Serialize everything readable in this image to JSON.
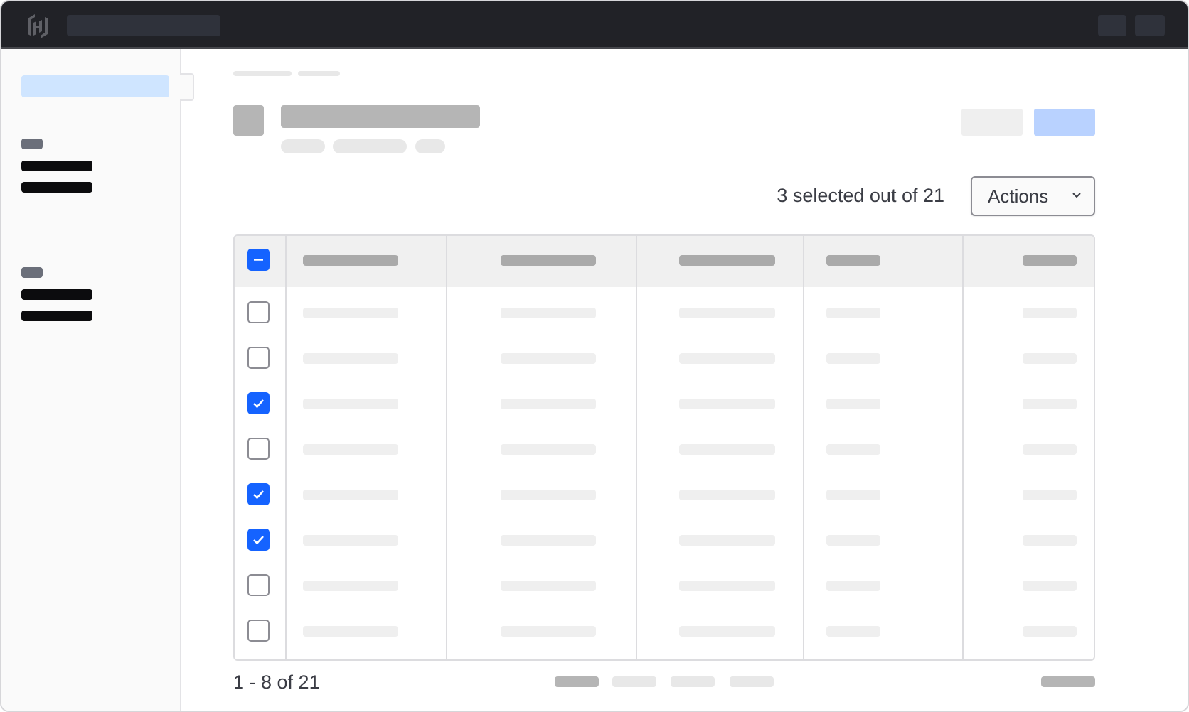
{
  "selection": {
    "summary": "3 selected out of 21"
  },
  "actions": {
    "label": "Actions",
    "icon": "chevron-down-icon"
  },
  "table": {
    "header_checkbox": "indeterminate",
    "rows": [
      {
        "checked": false
      },
      {
        "checked": false
      },
      {
        "checked": true
      },
      {
        "checked": false
      },
      {
        "checked": true
      },
      {
        "checked": true
      },
      {
        "checked": false
      },
      {
        "checked": false
      }
    ]
  },
  "pagination": {
    "range": "1 - 8 of 21"
  },
  "colors": {
    "topbar": "#212227",
    "accent": "#1563ff",
    "nav_active": "#cfe5ff",
    "primary_button": "#b9d2ff"
  }
}
